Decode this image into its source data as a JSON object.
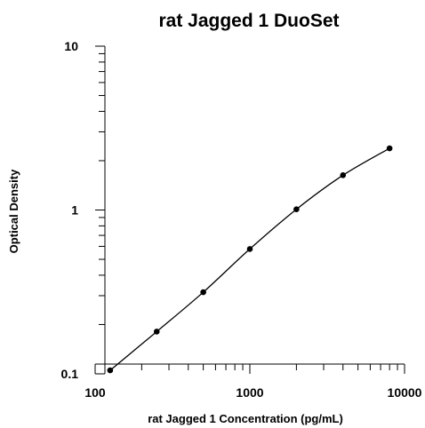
{
  "chart_data": {
    "type": "scatter",
    "title": "rat Jagged 1 DuoSet",
    "xlabel": "rat Jagged 1 Concentration (pg/mL)",
    "ylabel": "Optical Density",
    "x_scale": "log",
    "y_scale": "log",
    "xlim": [
      100,
      10000
    ],
    "ylim": [
      0.1,
      10
    ],
    "x_tick_labels": [
      "100",
      "1000",
      "10000"
    ],
    "y_tick_labels": [
      "0.1",
      "1",
      "10"
    ],
    "grid": false,
    "legend": "none",
    "fit_curve": true,
    "series": [
      {
        "x": [
          125,
          250,
          500,
          1000,
          2000,
          4000,
          8000
        ],
        "y": [
          0.105,
          0.181,
          0.315,
          0.578,
          1.01,
          1.63,
          2.38
        ]
      }
    ],
    "colors": {
      "points": "#000000",
      "curve": "#000000",
      "axes": "#000000"
    }
  }
}
